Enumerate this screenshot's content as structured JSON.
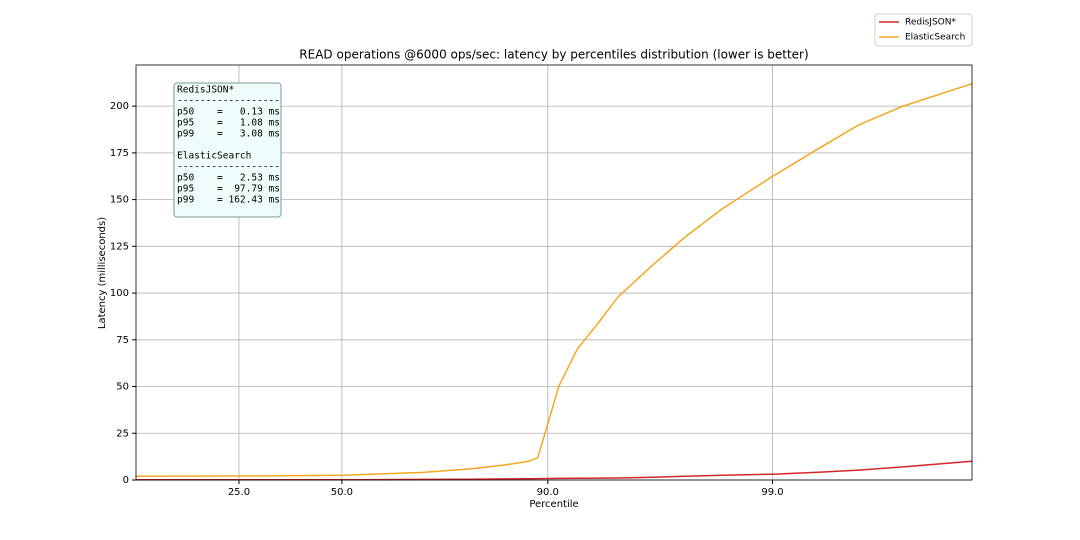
{
  "chart_data": {
    "type": "line",
    "title": "READ operations @6000 ops/sec: latency by percentiles distribution (lower is better)",
    "x_label": "Percentile",
    "y_label": "Latency (milliseconds)",
    "xscale": "logit",
    "grid": true,
    "legend": "upper right",
    "x": [
      10,
      30,
      50,
      70,
      80,
      85,
      88,
      89,
      90,
      91,
      92.5,
      94,
      95,
      96.5,
      97.5,
      98.3,
      99,
      99.4,
      99.6,
      99.75,
      99.88
    ],
    "series": [
      {
        "name": "RedisJSON*",
        "color": "#d62728",
        "values": [
          0.1,
          0.11,
          0.13,
          0.3,
          0.45,
          0.6,
          0.7,
          0.75,
          0.8,
          0.85,
          0.95,
          1.0,
          1.08,
          1.5,
          2.0,
          2.5,
          3.08,
          4.2,
          5.3,
          7.0,
          10
        ]
      },
      {
        "name": "ElasticSearch",
        "color": "#f5a623",
        "values": [
          2,
          2.2,
          2.53,
          4,
          6,
          8,
          10,
          12,
          30,
          50,
          70,
          85,
          97.79,
          115,
          130,
          145,
          162.43,
          178,
          190,
          200,
          212
        ]
      }
    ],
    "xlim": [
      10,
      99.88
    ],
    "xticks": [
      {
        "value": 25,
        "label": "25.0"
      },
      {
        "value": 50,
        "label": "50.0"
      },
      {
        "value": 90,
        "label": "90.0"
      },
      {
        "value": 99,
        "label": "99.0"
      }
    ],
    "ylim": [
      0,
      222
    ],
    "yticks": [
      0,
      25,
      50,
      75,
      100,
      125,
      150,
      175,
      200
    ],
    "annotation": [
      "RedisJSON*",
      "------------------",
      "p50    =   0.13 ms",
      "p95    =   1.08 ms",
      "p99    =   3.08 ms",
      "ElasticSearch",
      "------------------",
      "p50    =   2.53 ms",
      "p95    =  97.79 ms",
      "p99    = 162.43 ms"
    ]
  }
}
